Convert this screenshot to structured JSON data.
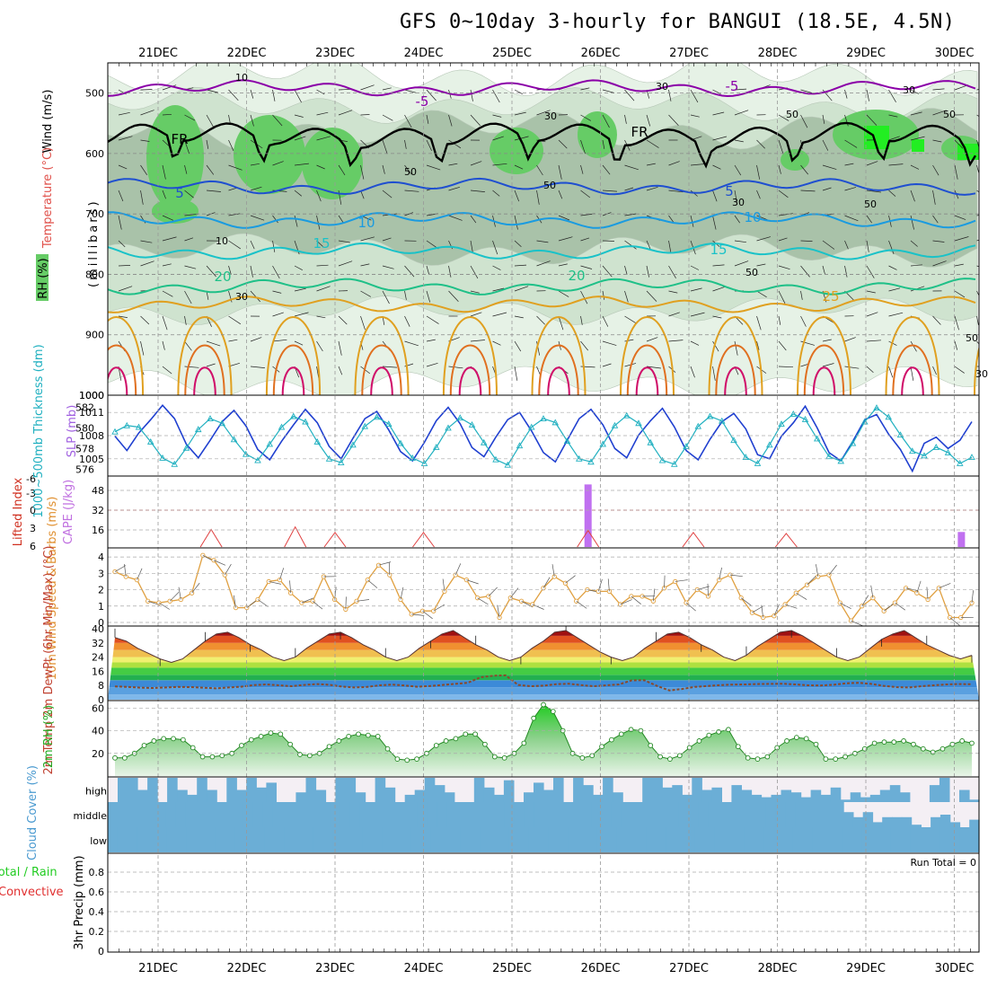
{
  "title": "GFS 0~10day 3-hourly for BANGUI (18.5E, 4.5N)",
  "dates": [
    "21DEC",
    "22DEC",
    "23DEC",
    "24DEC",
    "25DEC",
    "26DEC",
    "27DEC",
    "28DEC",
    "29DEC",
    "30DEC"
  ],
  "colors": {
    "grid": "#999999",
    "frame": "#000000",
    "rh_light": "#d9ecd9",
    "rh_mid": "#a9c9a9",
    "rh_green": "#66cc66",
    "rh_bright": "#22dd22",
    "cloud": "#6baed6"
  },
  "chart_data": [
    {
      "type": "contour",
      "name": "upper-air",
      "ylabel": "(millibars)",
      "y_axis_labels": {
        "wind": "Wind (m/s)",
        "temp": "Temperature (°C)",
        "rh": "RH (%)"
      },
      "ylim": [
        1000,
        450
      ],
      "yticks": [
        500,
        600,
        700,
        800,
        900,
        1000
      ],
      "isotherms": [
        {
          "label": "-5",
          "level_mb": 492,
          "color": "#8b00a8"
        },
        {
          "label": "FR",
          "level_mb": 570,
          "color": "#000000"
        },
        {
          "label": "5",
          "level_mb": 655,
          "color": "#1f4fd0"
        },
        {
          "label": "10",
          "level_mb": 710,
          "color": "#1a9be0"
        },
        {
          "label": "15",
          "level_mb": 762,
          "color": "#19c2c8"
        },
        {
          "label": "20",
          "level_mb": 820,
          "color": "#1fc088"
        },
        {
          "label": "25",
          "level_mb": 850,
          "color": "#e0a020"
        }
      ],
      "rh_contour_labels": [
        "10",
        "30",
        "50",
        "50",
        "30",
        "30",
        "50",
        "50",
        "10",
        "30",
        "50",
        "30",
        "50",
        "50",
        "30"
      ]
    },
    {
      "type": "line",
      "name": "thickness-slp",
      "series": [
        {
          "name": "1000-500mb Thickness (dm)",
          "color": "#2040d0",
          "ylim": [
            575,
            583
          ],
          "yticks": [
            576,
            578,
            580,
            582
          ],
          "values": [
            579.2,
            577.8,
            579.5,
            580.8,
            582.2,
            580.9,
            578.4,
            577.1,
            578.8,
            580.6,
            581.7,
            580.2,
            577.9,
            576.9,
            578.7,
            580.3,
            581.8,
            580.5,
            578.2,
            577.0,
            579.0,
            580.9,
            581.6,
            579.8,
            577.7,
            576.8,
            578.6,
            580.7,
            582.0,
            580.4,
            578.1,
            577.2,
            579.1,
            580.8,
            581.5,
            579.7,
            577.6,
            576.7,
            578.8,
            580.9,
            581.8,
            580.3,
            578.0,
            577.1,
            579.3,
            580.7,
            581.9,
            580.1,
            577.8,
            576.9,
            578.9,
            580.6,
            581.4,
            579.9,
            577.4,
            577.0,
            579.2,
            580.5,
            582.1,
            580.0,
            577.6,
            576.8,
            578.7,
            580.8,
            581.3,
            579.4,
            577.9,
            575.8,
            578.5,
            579.1,
            578.0,
            578.8,
            580.6
          ]
        },
        {
          "name": "SLP (mb)",
          "color": "#20b0c0",
          "ylim": [
            1003,
            1013
          ],
          "yticks": [
            1005,
            1008,
            1011
          ],
          "values": [
            1008.5,
            1009.3,
            1009.1,
            1007.2,
            1005.1,
            1004.3,
            1006.4,
            1008.8,
            1010.2,
            1009.6,
            1007.5,
            1005.6,
            1004.8,
            1006.9,
            1009.1,
            1010.5,
            1009.8,
            1007.2,
            1005.0,
            1004.5,
            1006.8,
            1009.2,
            1010.4,
            1009.5,
            1007.0,
            1005.1,
            1004.4,
            1006.5,
            1009.0,
            1010.3,
            1009.4,
            1007.1,
            1004.9,
            1004.2,
            1006.7,
            1009.1,
            1010.2,
            1009.7,
            1007.3,
            1005.0,
            1004.6,
            1006.9,
            1009.3,
            1010.6,
            1009.6,
            1007.1,
            1004.8,
            1004.3,
            1006.6,
            1009.2,
            1010.5,
            1009.9,
            1007.4,
            1005.2,
            1004.4,
            1006.8,
            1009.5,
            1010.8,
            1010.1,
            1007.6,
            1005.3,
            1004.7,
            1007.0,
            1009.8,
            1011.6,
            1010.4,
            1008.1,
            1006.0,
            1005.4,
            1006.5,
            1005.8,
            1004.4,
            1005.2
          ]
        }
      ],
      "ylabel_left": "1000~500mb Thickness (dm)",
      "ylabel_right": "SLP (mb)"
    },
    {
      "type": "bar",
      "name": "cape-li",
      "ylabel_left": "Lifted Index",
      "ylabel_right": "CAPE (J/kg)",
      "li_ticks": [
        "-6",
        "-3",
        "0",
        "3",
        "6"
      ],
      "cape_ticks": [
        "48",
        "32",
        "16"
      ],
      "cape_bars": [
        {
          "day": 4.86,
          "value": 50
        },
        {
          "day": 9.08,
          "value": 12
        }
      ],
      "li_bumps": [
        {
          "day": 0.6,
          "value": 3.5
        },
        {
          "day": 1.55,
          "value": 2.2
        },
        {
          "day": 2.0,
          "value": 5.0
        },
        {
          "day": 3.0,
          "value": 5.0
        },
        {
          "day": 4.86,
          "value": 4.0
        },
        {
          "day": 6.05,
          "value": 5.0
        },
        {
          "day": 7.1,
          "value": 5.5
        }
      ]
    },
    {
      "type": "line",
      "name": "wind-10m",
      "ylabel": "10m Wind Speed & Barbs (m/s)",
      "ylim": [
        0,
        4.5
      ],
      "yticks": [
        0,
        1,
        2,
        3,
        4
      ],
      "values": [
        3.1,
        2.8,
        2.6,
        1.3,
        1.2,
        1.3,
        1.4,
        1.8,
        4.1,
        3.8,
        2.9,
        0.9,
        0.9,
        1.4,
        2.5,
        2.6,
        1.8,
        1.2,
        1.3,
        2.8,
        1.4,
        0.8,
        1.3,
        2.6,
        3.5,
        2.9,
        1.4,
        0.5,
        0.7,
        0.7,
        1.9,
        2.9,
        2.6,
        1.5,
        1.6,
        0.3,
        1.5,
        1.3,
        1.1,
        2.1,
        2.8,
        2.4,
        1.3,
        2.0,
        1.9,
        1.9,
        1.1,
        1.6,
        1.6,
        1.3,
        2.1,
        2.5,
        1.2,
        2.0,
        1.6,
        2.6,
        2.9,
        1.5,
        0.6,
        0.3,
        0.4,
        1.1,
        1.8,
        2.3,
        2.8,
        2.9,
        1.2,
        0.1,
        1.0,
        1.5,
        0.7,
        1.2,
        2.1,
        1.8,
        1.4,
        2.1,
        0.3,
        0.3,
        1.2
      ]
    },
    {
      "type": "area",
      "name": "temp-2m",
      "ylabel": "2m Temp 2m DewPt (6hr Min/Max) (°C)",
      "ylim": [
        0,
        41
      ],
      "yticks": [
        0,
        8,
        16,
        24,
        32,
        40
      ],
      "temp": [
        35,
        33,
        29,
        26,
        23,
        21,
        23,
        28,
        33,
        37,
        38,
        35,
        31,
        28,
        24,
        22,
        24,
        29,
        33,
        37,
        38,
        35,
        31,
        28,
        24,
        22,
        24,
        29,
        33,
        37,
        39,
        35,
        31,
        28,
        24,
        22,
        24,
        29,
        33,
        38,
        39,
        35,
        31,
        27,
        24,
        22,
        24,
        29,
        33,
        37,
        38,
        35,
        31,
        28,
        24,
        22,
        25,
        30,
        34,
        38,
        39,
        36,
        32,
        28,
        24,
        22,
        24,
        29,
        34,
        37,
        39,
        35,
        31,
        28,
        25,
        23,
        25
      ],
      "dewpt": [
        7.5,
        7.2,
        6.8,
        6.6,
        6.9,
        7.2,
        7.1,
        6.8,
        6.4,
        6.9,
        7.3,
        8.2,
        8.6,
        8.1,
        7.6,
        8.3,
        8.8,
        8.4,
        7.4,
        6.9,
        7.2,
        8.1,
        8.5,
        8.0,
        7.3,
        7.7,
        8.3,
        8.9,
        9.5,
        12.6,
        13.5,
        13.7,
        8.3,
        7.6,
        7.9,
        8.7,
        9.0,
        8.2,
        7.6,
        8.1,
        8.6,
        10.9,
        11.0,
        7.8,
        5.2,
        6.0,
        7.2,
        7.7,
        8.2,
        8.5,
        8.6,
        8.8,
        8.9,
        9.0,
        8.6,
        8.1,
        8.0,
        8.4,
        9.2,
        9.5,
        8.9,
        7.8,
        7.1,
        6.9,
        7.6,
        8.1,
        8.6,
        8.8,
        8.7
      ]
    },
    {
      "type": "area",
      "name": "rh-2m",
      "ylabel": "2m RH (%)",
      "ylim": [
        0,
        65
      ],
      "yticks": [
        20,
        40,
        60
      ],
      "values": [
        16,
        16,
        20,
        27,
        31,
        33,
        33,
        32,
        25,
        17,
        17,
        18,
        20,
        27,
        32,
        35,
        38,
        37,
        28,
        19,
        18,
        20,
        26,
        31,
        35,
        37,
        36,
        35,
        24,
        15,
        14,
        15,
        20,
        27,
        31,
        33,
        37,
        37,
        28,
        17,
        16,
        20,
        29,
        51,
        63,
        57,
        40,
        20,
        16,
        18,
        26,
        32,
        37,
        41,
        40,
        27,
        17,
        15,
        18,
        25,
        31,
        36,
        39,
        41,
        26,
        16,
        15,
        17,
        25,
        31,
        34,
        33,
        28,
        15,
        15,
        17,
        20,
        24,
        29,
        30,
        30,
        31,
        28,
        24,
        21,
        24,
        28,
        31,
        29
      ]
    },
    {
      "type": "heatmap",
      "name": "cloud-cover",
      "ylabel": "Cloud Cover (%)",
      "rows": [
        "high",
        "middle",
        "low"
      ],
      "high": [
        0,
        1,
        1,
        0.5,
        1,
        0,
        1,
        0.5,
        0.3,
        1,
        0.5,
        0,
        1,
        0.5,
        1,
        0.6,
        0.8,
        0,
        0,
        0.4,
        1,
        0.5,
        0,
        1,
        1,
        0.4,
        0,
        1,
        0.6,
        0,
        0.3,
        0.5,
        1,
        0.7,
        0.4,
        0,
        0,
        1,
        0.6,
        0.3,
        0.9,
        0,
        0.4,
        0.8,
        0.5,
        1,
        0,
        1,
        0.7,
        0.3,
        1,
        0.4,
        0,
        0,
        1,
        1,
        0.6,
        0.7,
        0.3,
        1,
        0.5,
        0.6,
        0,
        0.7,
        0.5,
        0.3,
        0.2,
        0.3,
        0.5,
        0.4,
        0.2,
        0.5,
        0.3,
        0.6,
        0.1,
        0.4,
        0.2,
        0.3,
        0.5,
        0.7,
        0.4,
        0,
        0,
        0.7,
        1,
        0,
        0.5,
        0.1
      ],
      "middle": [
        1,
        1,
        1,
        1,
        1,
        1,
        1,
        1,
        1,
        1,
        1,
        1,
        1,
        1,
        1,
        1,
        1,
        1,
        1,
        1,
        1,
        1,
        1,
        1,
        1,
        1,
        1,
        1,
        1,
        1,
        1,
        1,
        1,
        1,
        1,
        1,
        1,
        1,
        1,
        1,
        1,
        1,
        1,
        1,
        1,
        1,
        1,
        1,
        1,
        1,
        1,
        1,
        1,
        1,
        1,
        1,
        1,
        1,
        1,
        1,
        1,
        1,
        1,
        1,
        1,
        1,
        1,
        1,
        1,
        1,
        1,
        1,
        1,
        1,
        1,
        1,
        0.6,
        0.4,
        0.6,
        0.2,
        0.4,
        0.4,
        0.4,
        0.1,
        0,
        0.4,
        0.5,
        0.2,
        0,
        0.3
      ],
      "low": [
        1,
        1,
        1,
        1,
        1,
        1,
        1,
        1,
        1,
        1,
        1,
        1,
        1,
        1,
        1,
        1,
        1,
        1,
        1,
        1,
        1,
        1,
        1,
        1,
        1,
        1,
        1,
        1,
        1,
        1,
        1,
        1,
        1,
        1,
        1,
        1,
        1,
        1,
        1,
        1,
        1,
        1,
        1,
        1,
        1,
        1,
        1,
        1,
        1,
        1,
        1,
        1,
        1,
        1,
        1,
        1,
        1,
        1,
        1,
        1,
        1,
        1,
        1,
        1,
        1,
        1,
        1,
        1,
        1,
        1,
        1,
        1,
        1,
        1,
        1,
        1,
        1,
        1,
        1,
        1,
        1,
        1,
        1,
        1,
        1,
        1,
        1,
        1,
        1
      ]
    },
    {
      "type": "bar",
      "name": "precip",
      "ylabel": "3hr Precip (mm)",
      "legend_total": "Total / Rain",
      "legend_conv": "Convective",
      "ylim": [
        0,
        1.0
      ],
      "yticks": [
        "0",
        "0.2",
        "0.4",
        "0.6",
        "0.8"
      ],
      "run_total": "Run Total = 0",
      "values": []
    }
  ]
}
